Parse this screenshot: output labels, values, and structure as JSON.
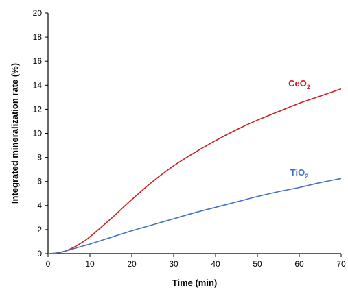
{
  "chart_data": {
    "type": "line",
    "xlabel": "Time (min)",
    "ylabel": "Integrated mineralization rate (%)",
    "xlim": [
      0,
      70
    ],
    "ylim": [
      0,
      20
    ],
    "x_ticks": [
      0,
      10,
      20,
      30,
      40,
      50,
      60,
      70
    ],
    "y_ticks": [
      0,
      2,
      4,
      6,
      8,
      10,
      12,
      14,
      16,
      18,
      20
    ],
    "grid": false,
    "legend": "inline-labels",
    "series": [
      {
        "name": "CeO2",
        "label_base": "CeO",
        "label_sub": "2",
        "color": "#cc1f1f",
        "x": [
          0,
          2,
          4,
          6,
          8,
          10,
          15,
          20,
          25,
          30,
          35,
          40,
          45,
          50,
          55,
          60,
          65,
          70
        ],
        "y": [
          0,
          0.05,
          0.2,
          0.5,
          0.9,
          1.4,
          2.9,
          4.5,
          6.0,
          7.3,
          8.4,
          9.4,
          10.3,
          11.1,
          11.8,
          12.5,
          13.1,
          13.7
        ]
      },
      {
        "name": "TiO2",
        "label_base": "TiO",
        "label_sub": "2",
        "color": "#4472c4",
        "x": [
          0,
          2,
          4,
          6,
          8,
          10,
          15,
          20,
          25,
          30,
          35,
          40,
          45,
          50,
          55,
          60,
          65,
          70
        ],
        "y": [
          0,
          0.05,
          0.2,
          0.4,
          0.6,
          0.8,
          1.35,
          1.9,
          2.4,
          2.9,
          3.4,
          3.85,
          4.3,
          4.75,
          5.15,
          5.5,
          5.9,
          6.25
        ]
      }
    ]
  }
}
